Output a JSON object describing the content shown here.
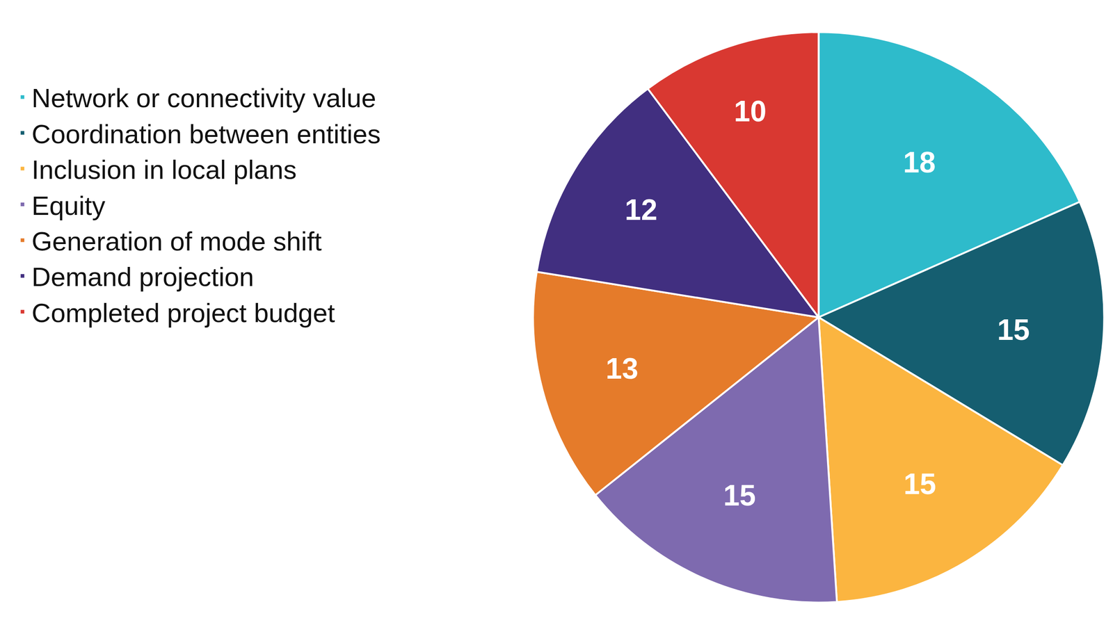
{
  "chart_data": {
    "type": "pie",
    "categories": [
      "Network or connectivity value",
      "Coordination between entities",
      "Inclusion in local plans",
      "Equity",
      "Generation of mode shift",
      "Demand projection",
      "Completed project budget"
    ],
    "values": [
      18,
      15,
      15,
      15,
      13,
      12,
      10
    ],
    "colors": [
      "#2EBBCB",
      "#155E70",
      "#FBB540",
      "#7E6AAF",
      "#E57B2A",
      "#412F80",
      "#D93831"
    ],
    "data_labels": true,
    "legend": "left"
  }
}
